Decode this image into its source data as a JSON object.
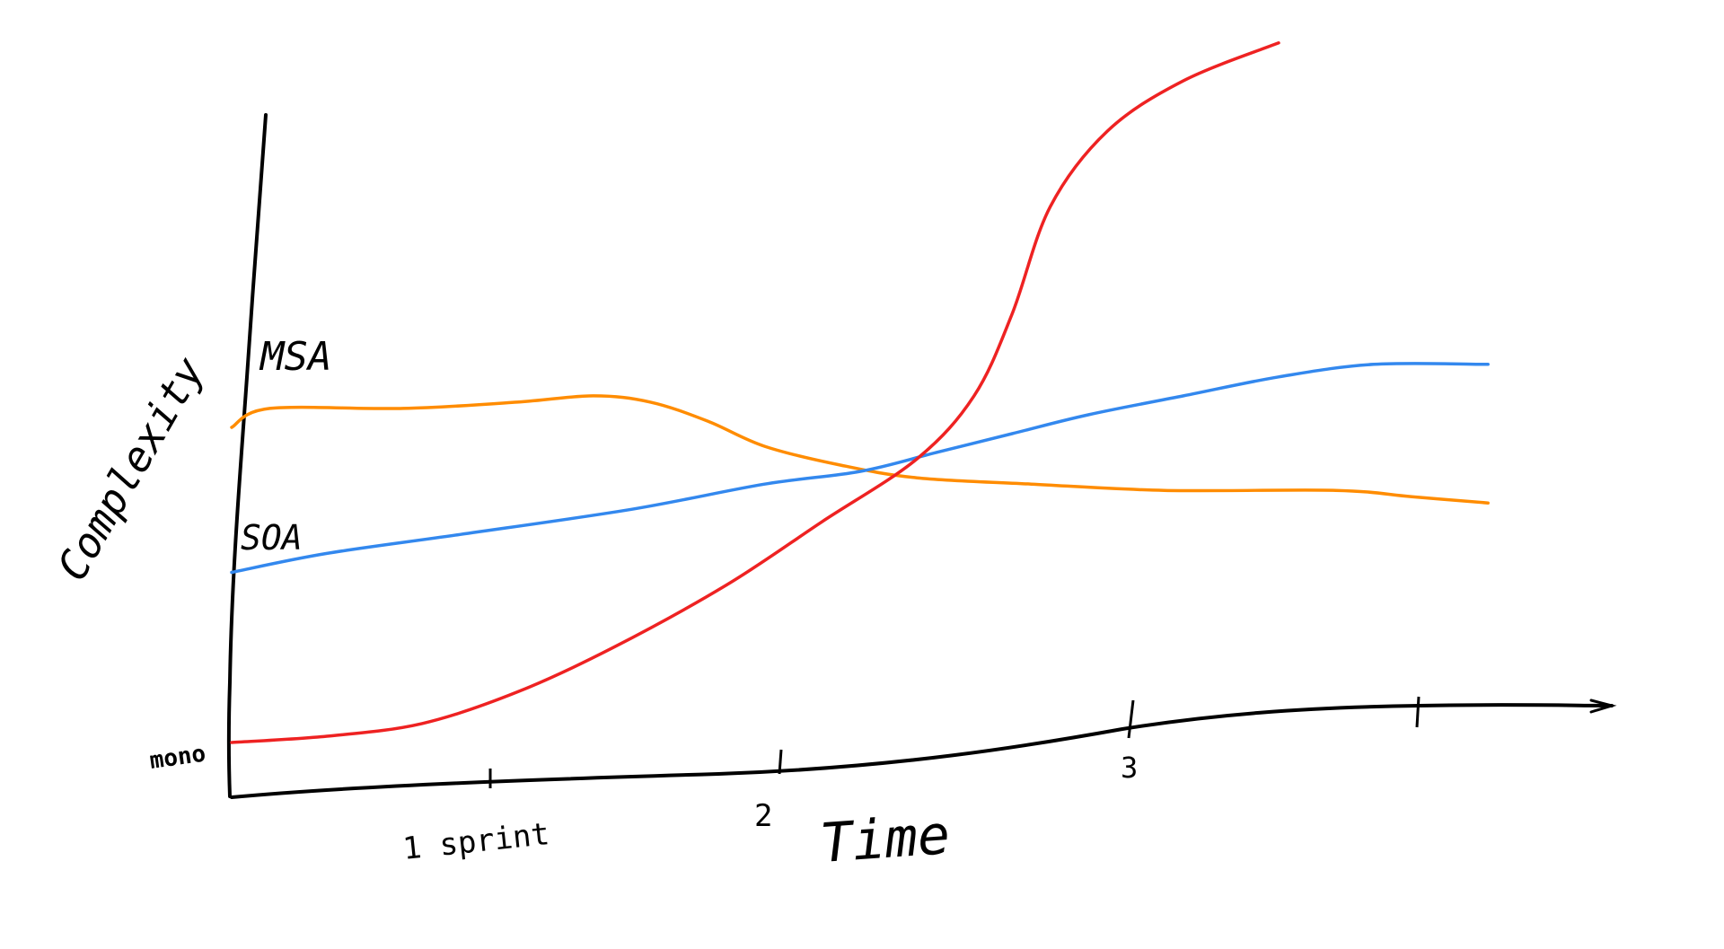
{
  "chart_data": {
    "type": "line",
    "title": "",
    "xlabel": "Time",
    "ylabel": "Complexity",
    "x_tick_labels": [
      "1 sprint",
      "2",
      "3",
      ""
    ],
    "y_tick_labels": [
      "mono",
      "SOA",
      "MSA"
    ],
    "series": [
      {
        "name": "MSA",
        "color": "#ff8c00",
        "points": [
          [
            0,
            0.5
          ],
          [
            0.2,
            0.53
          ],
          [
            0.9,
            0.53
          ],
          [
            1.5,
            0.54
          ],
          [
            1.9,
            0.55
          ],
          [
            2.2,
            0.54
          ],
          [
            2.5,
            0.51
          ],
          [
            2.8,
            0.47
          ],
          [
            3.2,
            0.44
          ],
          [
            3.6,
            0.42
          ],
          [
            4.2,
            0.41
          ],
          [
            4.9,
            0.4
          ],
          [
            5.8,
            0.4
          ],
          [
            6.2,
            0.39
          ],
          [
            6.6,
            0.38
          ]
        ]
      },
      {
        "name": "SOA",
        "color": "#3388ee",
        "points": [
          [
            0,
            0.27
          ],
          [
            0.5,
            0.3
          ],
          [
            1.2,
            0.33
          ],
          [
            2.1,
            0.37
          ],
          [
            2.8,
            0.41
          ],
          [
            3.3,
            0.43
          ],
          [
            3.7,
            0.46
          ],
          [
            4.1,
            0.49
          ],
          [
            4.5,
            0.52
          ],
          [
            5.0,
            0.55
          ],
          [
            5.5,
            0.58
          ],
          [
            6.0,
            0.6
          ],
          [
            6.6,
            0.6
          ]
        ]
      },
      {
        "name": "mono",
        "color": "#ee2222",
        "points": [
          [
            0,
            0.0
          ],
          [
            0.5,
            0.01
          ],
          [
            1.0,
            0.03
          ],
          [
            1.5,
            0.08
          ],
          [
            2.0,
            0.15
          ],
          [
            2.6,
            0.25
          ],
          [
            3.1,
            0.35
          ],
          [
            3.6,
            0.45
          ],
          [
            3.9,
            0.55
          ],
          [
            4.1,
            0.68
          ],
          [
            4.3,
            0.85
          ],
          [
            4.6,
            0.97
          ],
          [
            5.0,
            1.05
          ],
          [
            5.5,
            1.11
          ]
        ]
      }
    ],
    "grid": false,
    "legend": "none"
  }
}
